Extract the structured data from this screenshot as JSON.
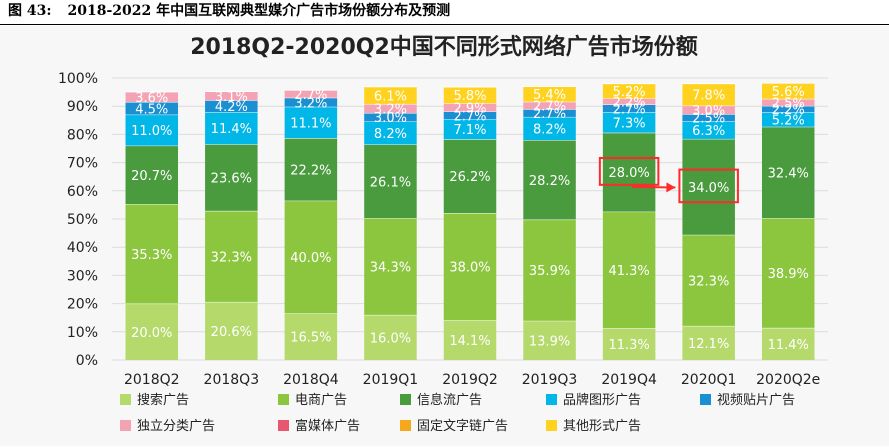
{
  "caption": {
    "label": "图 43:",
    "text": "2018-2022 年中国互联网典型媒介广告市场份额分布及预测"
  },
  "chart_data": {
    "type": "bar",
    "stacked": true,
    "title": "2018Q2-2020Q2中国不同形式网络广告市场份额",
    "categories": [
      "2018Q2",
      "2018Q3",
      "2018Q4",
      "2019Q1",
      "2019Q2",
      "2019Q3",
      "2019Q4",
      "2020Q1",
      "2020Q2e"
    ],
    "ylim": [
      0,
      100
    ],
    "yticks": [
      "0%",
      "10%",
      "20%",
      "30%",
      "40%",
      "50%",
      "60%",
      "70%",
      "80%",
      "90%",
      "100%"
    ],
    "grid": true,
    "legend_position": "bottom",
    "series": [
      {
        "name": "搜索广告",
        "color": "#b5d96b",
        "values": [
          20.0,
          20.6,
          16.5,
          16.0,
          14.1,
          13.9,
          11.3,
          12.1,
          11.4
        ],
        "labels": [
          "20.0%",
          "20.6%",
          "16.5%",
          "16.0%",
          "14.1%",
          "13.9%",
          "11.3%",
          "12.1%",
          "11.4%"
        ]
      },
      {
        "name": "电商广告",
        "color": "#8cc63f",
        "values": [
          35.3,
          32.3,
          40.0,
          34.3,
          38.0,
          35.9,
          41.3,
          32.3,
          38.9
        ],
        "labels": [
          "35.3%",
          "32.3%",
          "40.0%",
          "34.3%",
          "38.0%",
          "35.9%",
          "41.3%",
          "32.3%",
          "38.9%"
        ]
      },
      {
        "name": "信息流广告",
        "color": "#4a9a3e",
        "values": [
          20.7,
          23.6,
          22.2,
          26.1,
          26.2,
          28.2,
          28.0,
          34.0,
          32.4
        ],
        "labels": [
          "20.7%",
          "23.6%",
          "22.2%",
          "26.1%",
          "26.2%",
          "28.2%",
          "28.0%",
          "34.0%",
          "32.4%"
        ]
      },
      {
        "name": "品牌图形广告",
        "color": "#00b7e8",
        "values": [
          11.0,
          11.4,
          11.1,
          8.2,
          7.1,
          8.2,
          7.3,
          6.3,
          5.2
        ],
        "labels": [
          "11.0%",
          "11.4%",
          "11.1%",
          "8.2%",
          "7.1%",
          "8.2%",
          "7.3%",
          "6.3%",
          "5.2%"
        ]
      },
      {
        "name": "视频贴片广告",
        "color": "#1a8fd1",
        "values": [
          4.5,
          4.2,
          3.2,
          3.0,
          2.7,
          2.7,
          2.7,
          2.5,
          2.2
        ],
        "labels": [
          "4.5%",
          "4.2%",
          "3.2%",
          "3.0%",
          "2.7%",
          "2.7%",
          "2.7%",
          "2.5%",
          "2.2%"
        ]
      },
      {
        "name": "独立分类广告",
        "color": "#f4a3b4",
        "values": [
          3.6,
          3.1,
          2.7,
          3.2,
          2.9,
          2.7,
          2.2,
          3.0,
          2.5
        ],
        "labels": [
          "3.6%",
          "3.1%",
          "2.7%",
          "3.2%",
          "2.9%",
          "2.7%",
          "2.2%",
          "3.0%",
          "2.5%"
        ]
      },
      {
        "name": "富媒体广告",
        "color": "#e8576f",
        "values": [
          0,
          0,
          0,
          0,
          0,
          0,
          0,
          0,
          0
        ],
        "labels": [
          "",
          "",
          "",
          "",
          "",
          "",
          "",
          "",
          ""
        ]
      },
      {
        "name": "固定文字链广告",
        "color": "#f5a81c",
        "values": [
          0,
          0,
          0,
          0,
          0,
          0,
          0,
          0,
          0
        ],
        "labels": [
          "",
          "",
          "",
          "",
          "",
          "",
          "",
          "",
          ""
        ]
      },
      {
        "name": "其他形式广告",
        "color": "#ffd21f",
        "values": [
          0,
          0,
          0,
          6.1,
          5.8,
          5.4,
          5.2,
          7.8,
          5.6
        ],
        "labels": [
          "",
          "",
          "",
          "6.1%",
          "5.8%",
          "5.4%",
          "5.2%",
          "7.8%",
          "5.6%"
        ]
      }
    ],
    "highlight": [
      {
        "category": "2019Q4",
        "series": "信息流广告",
        "label": "28.0%"
      },
      {
        "category": "2020Q1",
        "series": "信息流广告",
        "label": "34.0%"
      }
    ]
  }
}
